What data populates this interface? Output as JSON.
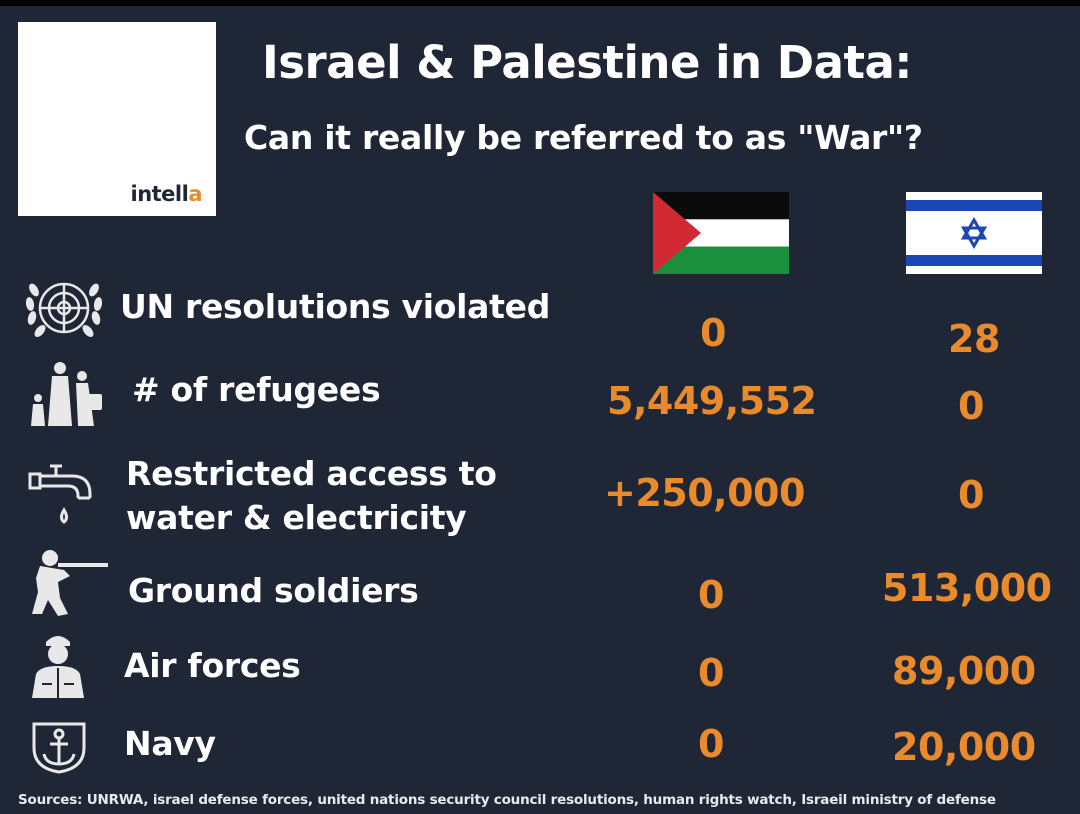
{
  "header": {
    "title": "Israel & Palestine in Data:",
    "subtitle": "Can it really be referred to as \"War\"?"
  },
  "logo": {
    "text_main": "intell",
    "text_accent": "a"
  },
  "flags": {
    "palestine": "palestine-flag",
    "israel": "israel-flag"
  },
  "rows": [
    {
      "icon": "un-emblem-icon",
      "label": "UN resolutions violated",
      "palestine": "0",
      "israel": "28"
    },
    {
      "icon": "refugees-icon",
      "label": "# of refugees",
      "palestine": "5,449,552",
      "israel": "0"
    },
    {
      "icon": "water-tap-icon",
      "label_line1": "Restricted access to",
      "label_line2": "water & electricity",
      "palestine": "+250,000",
      "israel": "0"
    },
    {
      "icon": "soldier-icon",
      "label": "Ground soldiers",
      "palestine": "0",
      "israel": "513,000"
    },
    {
      "icon": "pilot-icon",
      "label": "Air forces",
      "palestine": "0",
      "israel": "89,000"
    },
    {
      "icon": "navy-anchor-icon",
      "label": "Navy",
      "palestine": "0",
      "israel": "20,000"
    }
  ],
  "footer": {
    "sources": "Sources: UNRWA, israel defense forces, united nations security council resolutions, human rights watch, Israeil ministry of defense"
  },
  "colors": {
    "background": "#1f2635",
    "accent": "#e98a2c",
    "text": "#ffffff"
  }
}
